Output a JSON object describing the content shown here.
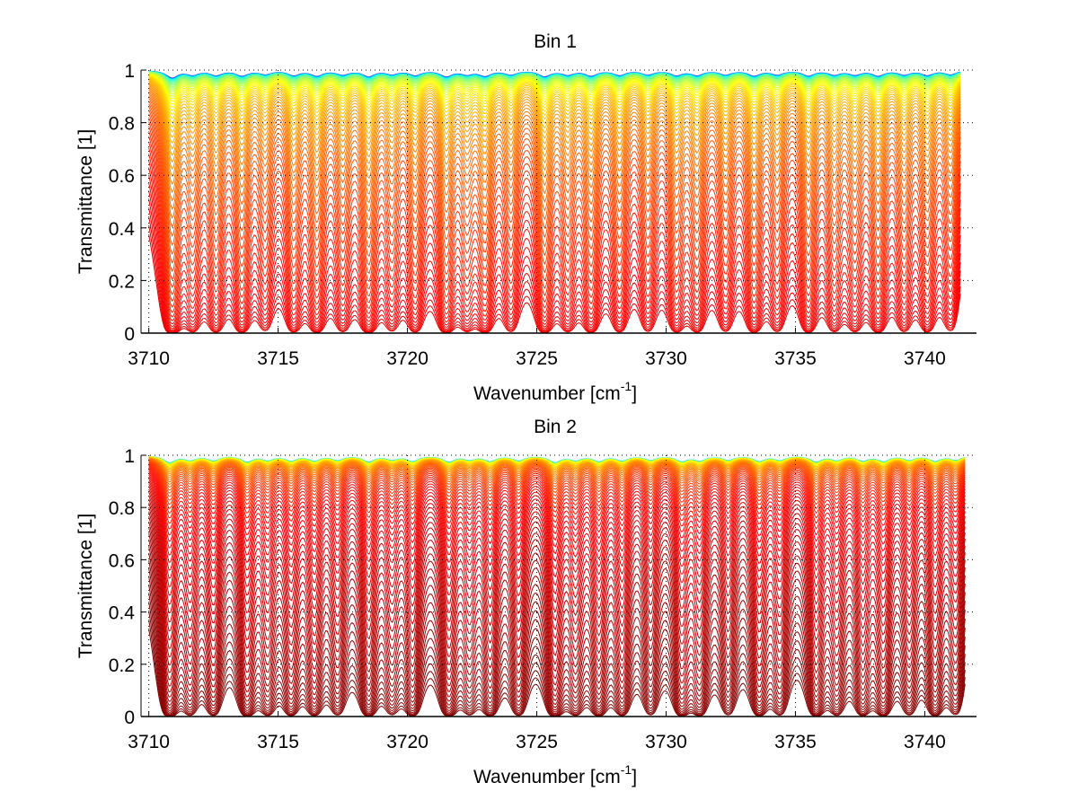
{
  "chart_data": [
    {
      "type": "line",
      "title": "Bin 1",
      "xlabel": "Wavenumber [cm",
      "xlabel_sup": "-1",
      "xlabel_end": "]",
      "ylabel": "Transmittance [1]",
      "xlim": [
        3709.7,
        3742
      ],
      "ylim": [
        0,
        1
      ],
      "xticks": [
        "3710",
        "3715",
        "3720",
        "3725",
        "3730",
        "3735",
        "3740"
      ],
      "xtick_values": [
        3710,
        3715,
        3720,
        3725,
        3730,
        3735,
        3740
      ],
      "yticks": [
        "0",
        "0.2",
        "0.4",
        "0.6",
        "0.8",
        "1"
      ],
      "ytick_values": [
        0,
        0.2,
        0.4,
        0.6,
        0.8,
        1
      ],
      "grid": true,
      "x_range_data": [
        3710,
        3741.4
      ],
      "series_count": 60,
      "colormap": "jet-upper (blue → cyan → yellow → orange → red)",
      "line_centers": [
        3710.9,
        3711.7,
        3712.6,
        3713.6,
        3714.5,
        3715.6,
        3716.5,
        3717.5,
        3718.5,
        3719.4,
        3720.3,
        3721.5,
        3722.3,
        3723.0,
        3724.0,
        3725.3,
        3726.2,
        3727.1,
        3728.2,
        3729.3,
        3730.4,
        3731.2,
        3732.3,
        3733.4,
        3734.3,
        3735.5,
        3736.5,
        3737.3,
        3738.2,
        3739.2,
        3740.1,
        3741.0
      ],
      "line_strengths": [
        1.4,
        0.8,
        0.9,
        1.0,
        0.7,
        0.9,
        1.0,
        0.8,
        1.1,
        0.7,
        0.9,
        1.1,
        0.7,
        1.0,
        0.8,
        1.1,
        0.8,
        1.0,
        0.9,
        0.8,
        0.9,
        0.9,
        0.8,
        1.0,
        0.8,
        1.0,
        0.8,
        0.8,
        1.0,
        0.8,
        0.9,
        0.8
      ]
    },
    {
      "type": "line",
      "title": "Bin 2",
      "xlabel": "Wavenumber [cm",
      "xlabel_sup": "-1",
      "xlabel_end": "]",
      "ylabel": "Transmittance [1]",
      "xlim": [
        3709.7,
        3742
      ],
      "ylim": [
        0,
        1
      ],
      "xticks": [
        "3710",
        "3715",
        "3720",
        "3725",
        "3730",
        "3735",
        "3740"
      ],
      "xtick_values": [
        3710,
        3715,
        3720,
        3725,
        3730,
        3735,
        3740
      ],
      "yticks": [
        "0",
        "0.2",
        "0.4",
        "0.6",
        "0.8",
        "1"
      ],
      "ytick_values": [
        0,
        0.2,
        0.4,
        0.6,
        0.8,
        1
      ],
      "grid": true,
      "x_range_data": [
        3710,
        3741.6
      ],
      "series_count": 60,
      "colormap": "jet-upper (cyan → yellow → orange → dark red)",
      "line_centers": [
        3710.8,
        3711.6,
        3712.5,
        3713.8,
        3714.6,
        3715.5,
        3716.4,
        3717.3,
        3718.5,
        3719.4,
        3720.2,
        3721.6,
        3722.4,
        3723.2,
        3724.3,
        3725.7,
        3726.5,
        3727.4,
        3728.3,
        3729.4,
        3730.6,
        3731.3,
        3732.4,
        3733.6,
        3734.4,
        3735.8,
        3736.6,
        3737.6,
        3738.4,
        3739.4,
        3740.4,
        3741.2
      ],
      "line_strengths": [
        1.3,
        0.8,
        0.9,
        1.1,
        0.8,
        0.9,
        0.9,
        0.8,
        1.1,
        0.7,
        1.0,
        1.1,
        0.7,
        1.0,
        0.9,
        1.2,
        0.8,
        1.0,
        0.9,
        0.8,
        1.0,
        0.9,
        0.8,
        1.0,
        0.8,
        1.1,
        0.8,
        0.9,
        1.0,
        0.8,
        1.0,
        0.8
      ]
    }
  ]
}
